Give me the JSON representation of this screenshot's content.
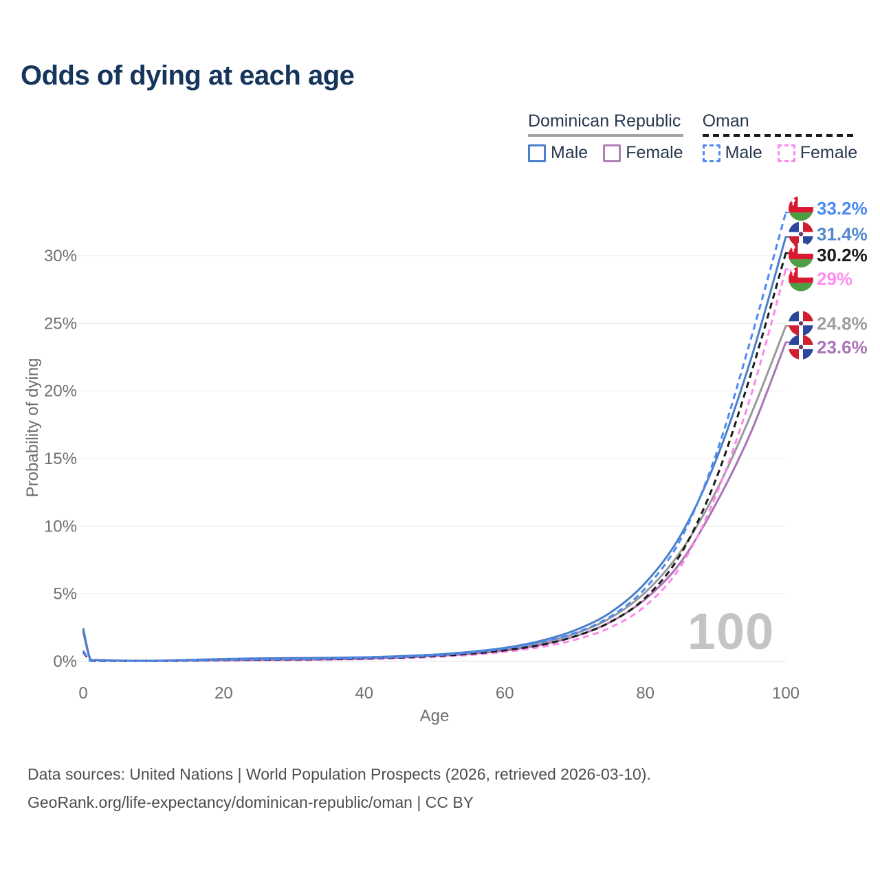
{
  "page": {
    "title": "Odds of dying at each age"
  },
  "legend": {
    "groups": [
      {
        "name": "Dominican Republic",
        "underline_color": "#a3a3a3",
        "underline_style": "solid",
        "items": [
          {
            "label": "Male",
            "color": "#4a7fc9",
            "dashed": false
          },
          {
            "label": "Female",
            "color": "#b07fb5",
            "dashed": false
          }
        ]
      },
      {
        "name": "Oman",
        "underline_color": "#1a1a1a",
        "underline_style": "dashed",
        "items": [
          {
            "label": "Male",
            "color": "#4a8af4",
            "dashed": true
          },
          {
            "label": "Female",
            "color": "#ff86ec",
            "dashed": true
          }
        ]
      }
    ]
  },
  "axes": {
    "x_label": "Age",
    "y_label": "Probability of dying",
    "x_ticks": [
      0,
      20,
      40,
      60,
      80,
      100
    ],
    "y_ticks_pct": [
      0,
      5,
      10,
      15,
      20,
      25,
      30
    ]
  },
  "hover_age_watermark": "100",
  "footer": {
    "line1": "Data sources: United Nations | World Population Prospects (2026, retrieved 2026-03-10).",
    "line2": "GeoRank.org/life-expectancy/dominican-republic/oman | CC BY"
  },
  "chart_data": {
    "type": "line",
    "title": "Odds of dying at each age",
    "xlabel": "Age",
    "ylabel": "Probability of dying",
    "x_range": [
      0,
      100
    ],
    "y_range_pct": [
      0,
      33.5
    ],
    "grid": "horizontal",
    "legend_position": "top-right",
    "ages": [
      0,
      1,
      2,
      3,
      5,
      10,
      15,
      20,
      25,
      30,
      35,
      40,
      45,
      50,
      55,
      60,
      65,
      70,
      75,
      80,
      85,
      90,
      95,
      100
    ],
    "series": [
      {
        "name": "Dominican Republic Both sexes",
        "country": "do",
        "sex": "total",
        "color": "#9a9a9a",
        "dashed": false,
        "end_value_pct": 24.8,
        "end_label": "24.8%",
        "label_color": "#9e9e9e",
        "label_dy": -4,
        "values_pct": [
          2.33,
          0.17,
          0.09,
          0.07,
          0.055,
          0.045,
          0.08,
          0.13,
          0.16,
          0.18,
          0.2,
          0.25,
          0.33,
          0.45,
          0.62,
          0.9,
          1.35,
          2.05,
          3.2,
          5.1,
          8.1,
          12.5,
          18.2,
          24.8
        ]
      },
      {
        "name": "Dominican Republic Female",
        "country": "do",
        "sex": "female",
        "color": "#a973b4",
        "dashed": false,
        "end_value_pct": 23.6,
        "end_label": "23.6%",
        "label_color": "#ab74b8",
        "label_dy": 7,
        "values_pct": [
          2.2,
          0.15,
          0.08,
          0.06,
          0.05,
          0.04,
          0.06,
          0.08,
          0.1,
          0.12,
          0.15,
          0.2,
          0.28,
          0.4,
          0.55,
          0.8,
          1.2,
          1.85,
          2.9,
          4.6,
          7.3,
          11.6,
          16.9,
          23.6
        ]
      },
      {
        "name": "Dominican Republic Male",
        "country": "do",
        "sex": "male",
        "color": "#4a7fc9",
        "dashed": false,
        "end_value_pct": 31.4,
        "end_label": "31.4%",
        "label_color": "#5288cf",
        "label_dy": -4,
        "values_pct": [
          2.45,
          0.18,
          0.1,
          0.08,
          0.06,
          0.05,
          0.1,
          0.18,
          0.22,
          0.24,
          0.26,
          0.3,
          0.38,
          0.5,
          0.7,
          1.0,
          1.5,
          2.3,
          3.6,
          5.8,
          9.3,
          14.8,
          22.3,
          31.4
        ]
      },
      {
        "name": "Oman Female",
        "country": "om",
        "sex": "female",
        "color": "#ff86ec",
        "dashed": true,
        "end_value_pct": 29.0,
        "end_label": "29%",
        "label_color": "#ff8df0",
        "label_dy": 14,
        "values_pct": [
          0.66,
          0.05,
          0.03,
          0.027,
          0.025,
          0.024,
          0.04,
          0.06,
          0.08,
          0.1,
          0.13,
          0.17,
          0.23,
          0.33,
          0.47,
          0.7,
          1.05,
          1.6,
          2.5,
          4.1,
          7.0,
          12.2,
          19.6,
          29.0
        ]
      },
      {
        "name": "Oman Both sexes",
        "country": "om",
        "sex": "total",
        "color": "#1a1a1a",
        "dashed": true,
        "end_value_pct": 30.2,
        "end_label": "30.2%",
        "label_color": "#1a1a1a",
        "label_dy": 3,
        "values_pct": [
          0.72,
          0.055,
          0.035,
          0.03,
          0.028,
          0.027,
          0.05,
          0.09,
          0.12,
          0.14,
          0.17,
          0.21,
          0.28,
          0.39,
          0.56,
          0.82,
          1.2,
          1.85,
          2.9,
          4.7,
          7.9,
          13.4,
          21.2,
          30.2
        ]
      },
      {
        "name": "Oman Male",
        "country": "om",
        "sex": "male",
        "color": "#4a8af4",
        "dashed": true,
        "end_value_pct": 33.2,
        "end_label": "33.2%",
        "label_color": "#4b8bf2",
        "label_dy": -6,
        "values_pct": [
          0.78,
          0.06,
          0.04,
          0.035,
          0.03,
          0.03,
          0.06,
          0.12,
          0.15,
          0.17,
          0.2,
          0.25,
          0.33,
          0.45,
          0.65,
          0.95,
          1.4,
          2.1,
          3.3,
          5.4,
          9.0,
          15.2,
          23.8,
          33.2
        ]
      }
    ]
  }
}
